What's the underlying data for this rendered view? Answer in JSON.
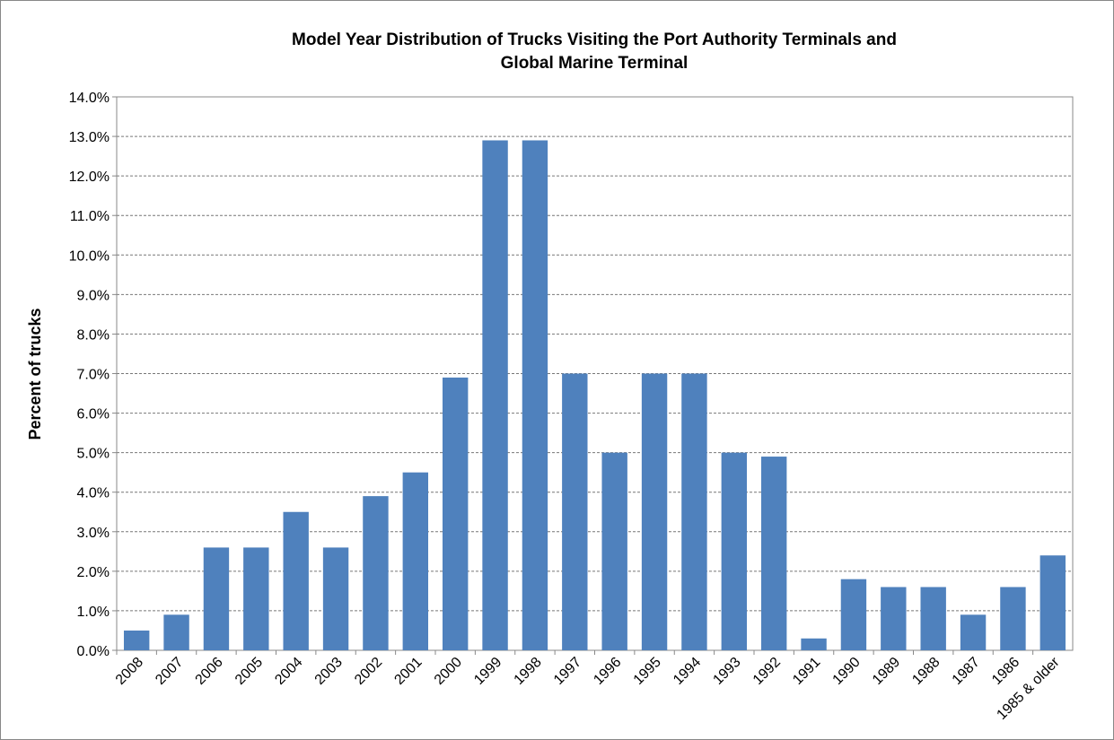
{
  "chart_data": {
    "type": "bar",
    "title": [
      "Model Year Distribution of Trucks Visiting the Port Authority Terminals and",
      "Global Marine Terminal"
    ],
    "y_label": "Percent of trucks",
    "categories": [
      "2008",
      "2007",
      "2006",
      "2005",
      "2004",
      "2003",
      "2002",
      "2001",
      "2000",
      "1999",
      "1998",
      "1997",
      "1996",
      "1995",
      "1994",
      "1993",
      "1992",
      "1991",
      "1990",
      "1989",
      "1988",
      "1987",
      "1986",
      "1985 & older"
    ],
    "values": [
      0.5,
      0.9,
      2.6,
      2.6,
      3.5,
      2.6,
      3.9,
      4.5,
      6.9,
      12.9,
      12.9,
      7.0,
      5.0,
      7.0,
      7.0,
      5.0,
      4.9,
      0.3,
      1.8,
      1.6,
      1.6,
      0.9,
      1.6,
      2.4
    ],
    "color": "#4f81bd",
    "ylim": [
      0,
      14
    ],
    "yticks": [
      {
        "value": 0,
        "label": "0.0%"
      },
      {
        "value": 1,
        "label": "1.0%"
      },
      {
        "value": 2,
        "label": "2.0%"
      },
      {
        "value": 3,
        "label": "3.0%"
      },
      {
        "value": 4,
        "label": "4.0%"
      },
      {
        "value": 5,
        "label": "5.0%"
      },
      {
        "value": 6,
        "label": "6.0%"
      },
      {
        "value": 7,
        "label": "7.0%"
      },
      {
        "value": 8,
        "label": "8.0%"
      },
      {
        "value": 9,
        "label": "9.0%"
      },
      {
        "value": 10,
        "label": "10.0%"
      },
      {
        "value": 11,
        "label": "11.0%"
      },
      {
        "value": 12,
        "label": "12.0%"
      },
      {
        "value": 13,
        "label": "13.0%"
      },
      {
        "value": 14,
        "label": "14.0%"
      }
    ],
    "grid": true
  }
}
